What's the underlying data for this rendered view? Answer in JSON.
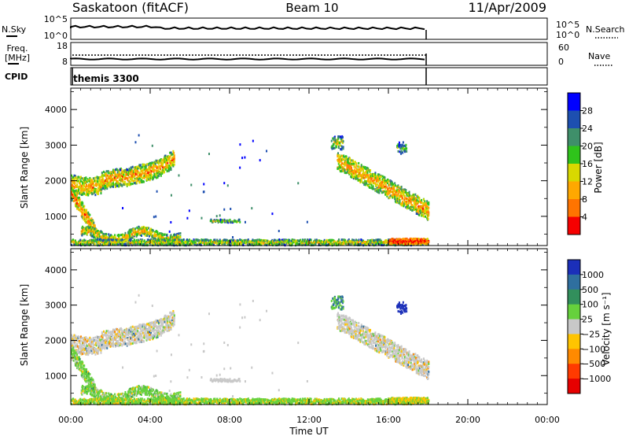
{
  "header": {
    "station": "Saskatoon (fitACF)",
    "beam": "Beam 10",
    "date": "11/Apr/2009"
  },
  "noise_panel": {
    "left_label": "N.Sky",
    "right_label": "N.Search",
    "left_ticks": [
      "10^5",
      "10^0"
    ],
    "right_ticks": [
      "10^5",
      "10^0"
    ]
  },
  "freq_panel": {
    "left_label_line1": "Freq.",
    "left_label_line2": "[MHz]",
    "right_label": "Nave",
    "left_ticks": [
      "18",
      "8"
    ],
    "right_ticks": [
      "60",
      "0"
    ]
  },
  "cpid_panel": {
    "label": "CPID",
    "mode": "themis 3300"
  },
  "time_axis": {
    "label": "Time UT",
    "ticks": [
      "00:00",
      "04:00",
      "08:00",
      "12:00",
      "16:00",
      "20:00",
      "00:00"
    ],
    "hours": [
      0,
      4,
      8,
      12,
      16,
      20,
      24
    ],
    "data_end_hour": 18
  },
  "chart_data": [
    {
      "type": "heatmap",
      "name": "power",
      "ylabel": "Slant Range [km]",
      "yticks": [
        "1000",
        "2000",
        "3000",
        "4000"
      ],
      "ytick_values": [
        1000,
        2000,
        3000,
        4000
      ],
      "ylim": [
        180,
        4600
      ],
      "colorbar": {
        "label": "Power [dB]",
        "ticks": [
          "4",
          "8",
          "12",
          "16",
          "20",
          "24",
          "28"
        ],
        "colors": [
          "#0000ff",
          "#1d4fb0",
          "#3f8f6a",
          "#2fc31b",
          "#d8d800",
          "#ffa800",
          "#ff7400",
          "#f60000"
        ]
      }
    },
    {
      "type": "heatmap",
      "name": "velocity",
      "ylabel": "Slant Range [km]",
      "yticks": [
        "1000",
        "2000",
        "3000",
        "4000"
      ],
      "ytick_values": [
        1000,
        2000,
        3000,
        4000
      ],
      "ylim": [
        180,
        4600
      ],
      "colorbar": {
        "label": "Velocity [m s⁻¹]",
        "ticks": [
          "1000",
          "500",
          "100",
          "25",
          "−25",
          "−100",
          "−500",
          "−1000"
        ],
        "colors": [
          "#1b2fb9",
          "#2f6f9f",
          "#328f5c",
          "#66d13c",
          "#c8c8c8",
          "#ffc400",
          "#ff8a00",
          "#ff3a00",
          "#e60000"
        ]
      }
    }
  ]
}
